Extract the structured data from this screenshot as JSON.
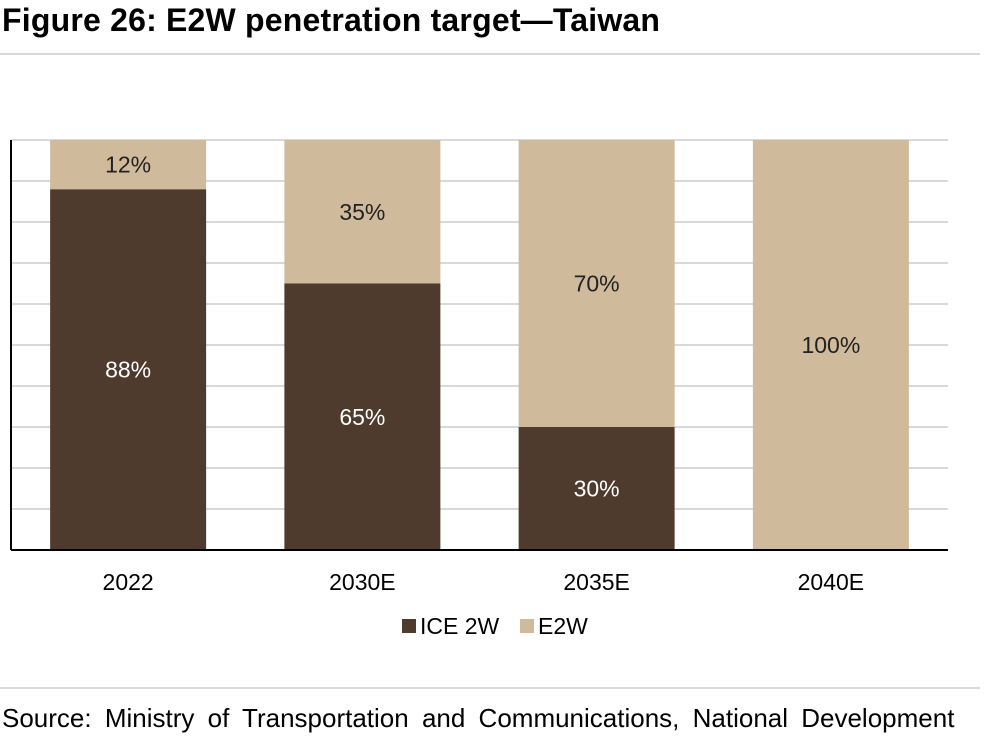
{
  "title": "Figure 26: E2W penetration target—Taiwan",
  "source": "Source: Ministry of Transportation and Communications, National Development",
  "colors": {
    "ice": "#4e3b2e",
    "e2w": "#cfbb9b",
    "grid": "#d9d9d9",
    "axis": "#000000"
  },
  "chart_data": {
    "type": "bar",
    "stacked": true,
    "categories": [
      "2022",
      "2030E",
      "2035E",
      "2040E"
    ],
    "series": [
      {
        "name": "ICE 2W",
        "values": [
          88,
          65,
          30,
          0
        ],
        "labels": [
          "88%",
          "65%",
          "30%",
          ""
        ]
      },
      {
        "name": "E2W",
        "values": [
          12,
          35,
          70,
          100
        ],
        "labels": [
          "12%",
          "35%",
          "70%",
          "100%"
        ]
      }
    ],
    "ylim": [
      0,
      100
    ],
    "grid": true,
    "legend": "bottom"
  }
}
